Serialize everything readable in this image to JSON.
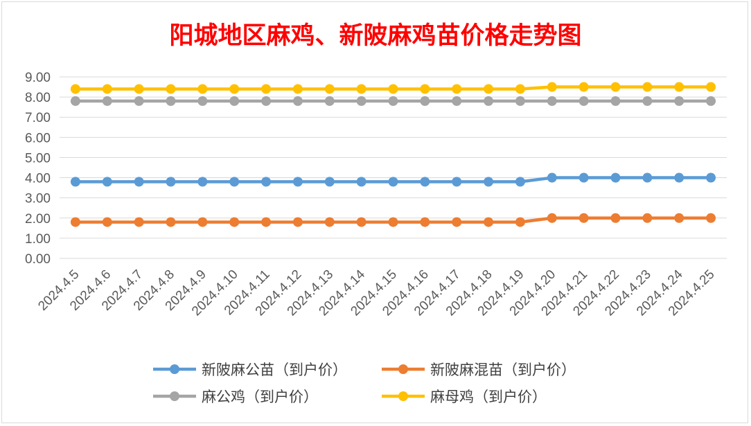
{
  "chart_data": {
    "type": "line",
    "title": "阳城地区麻鸡、新陂麻鸡苗价格走势图",
    "xlabel": "",
    "ylabel": "",
    "ylim": [
      0,
      9
    ],
    "y_ticks": [
      "0.00",
      "1.00",
      "2.00",
      "3.00",
      "4.00",
      "5.00",
      "6.00",
      "7.00",
      "8.00",
      "9.00"
    ],
    "grid": true,
    "legend_position": "bottom",
    "categories": [
      "2024.4.5",
      "2024.4.6",
      "2024.4.7",
      "2024.4.8",
      "2024.4.9",
      "2024.4.10",
      "2024.4.11",
      "2024.4.12",
      "2024.4.13",
      "2024.4.14",
      "2024.4.15",
      "2024.4.16",
      "2024.4.17",
      "2024.4.18",
      "2024.4.19",
      "2024.4.20",
      "2024.4.21",
      "2024.4.22",
      "2024.4.23",
      "2024.4.24",
      "2024.4.25"
    ],
    "series": [
      {
        "name": "新陂麻公苗（到户价）",
        "color": "#5b9bd5",
        "values": [
          3.8,
          3.8,
          3.8,
          3.8,
          3.8,
          3.8,
          3.8,
          3.8,
          3.8,
          3.8,
          3.8,
          3.8,
          3.8,
          3.8,
          3.8,
          4.0,
          4.0,
          4.0,
          4.0,
          4.0,
          4.0
        ]
      },
      {
        "name": "新陂麻混苗（到户价）",
        "color": "#ed7d31",
        "values": [
          1.8,
          1.8,
          1.8,
          1.8,
          1.8,
          1.8,
          1.8,
          1.8,
          1.8,
          1.8,
          1.8,
          1.8,
          1.8,
          1.8,
          1.8,
          2.0,
          2.0,
          2.0,
          2.0,
          2.0,
          2.0
        ]
      },
      {
        "name": "麻公鸡（到户价）",
        "color": "#a5a5a5",
        "values": [
          7.8,
          7.8,
          7.8,
          7.8,
          7.8,
          7.8,
          7.8,
          7.8,
          7.8,
          7.8,
          7.8,
          7.8,
          7.8,
          7.8,
          7.8,
          7.8,
          7.8,
          7.8,
          7.8,
          7.8,
          7.8
        ]
      },
      {
        "name": "麻母鸡（到户价）",
        "color": "#ffc000",
        "values": [
          8.4,
          8.4,
          8.4,
          8.4,
          8.4,
          8.4,
          8.4,
          8.4,
          8.4,
          8.4,
          8.4,
          8.4,
          8.4,
          8.4,
          8.4,
          8.5,
          8.5,
          8.5,
          8.5,
          8.5,
          8.5
        ]
      }
    ]
  }
}
